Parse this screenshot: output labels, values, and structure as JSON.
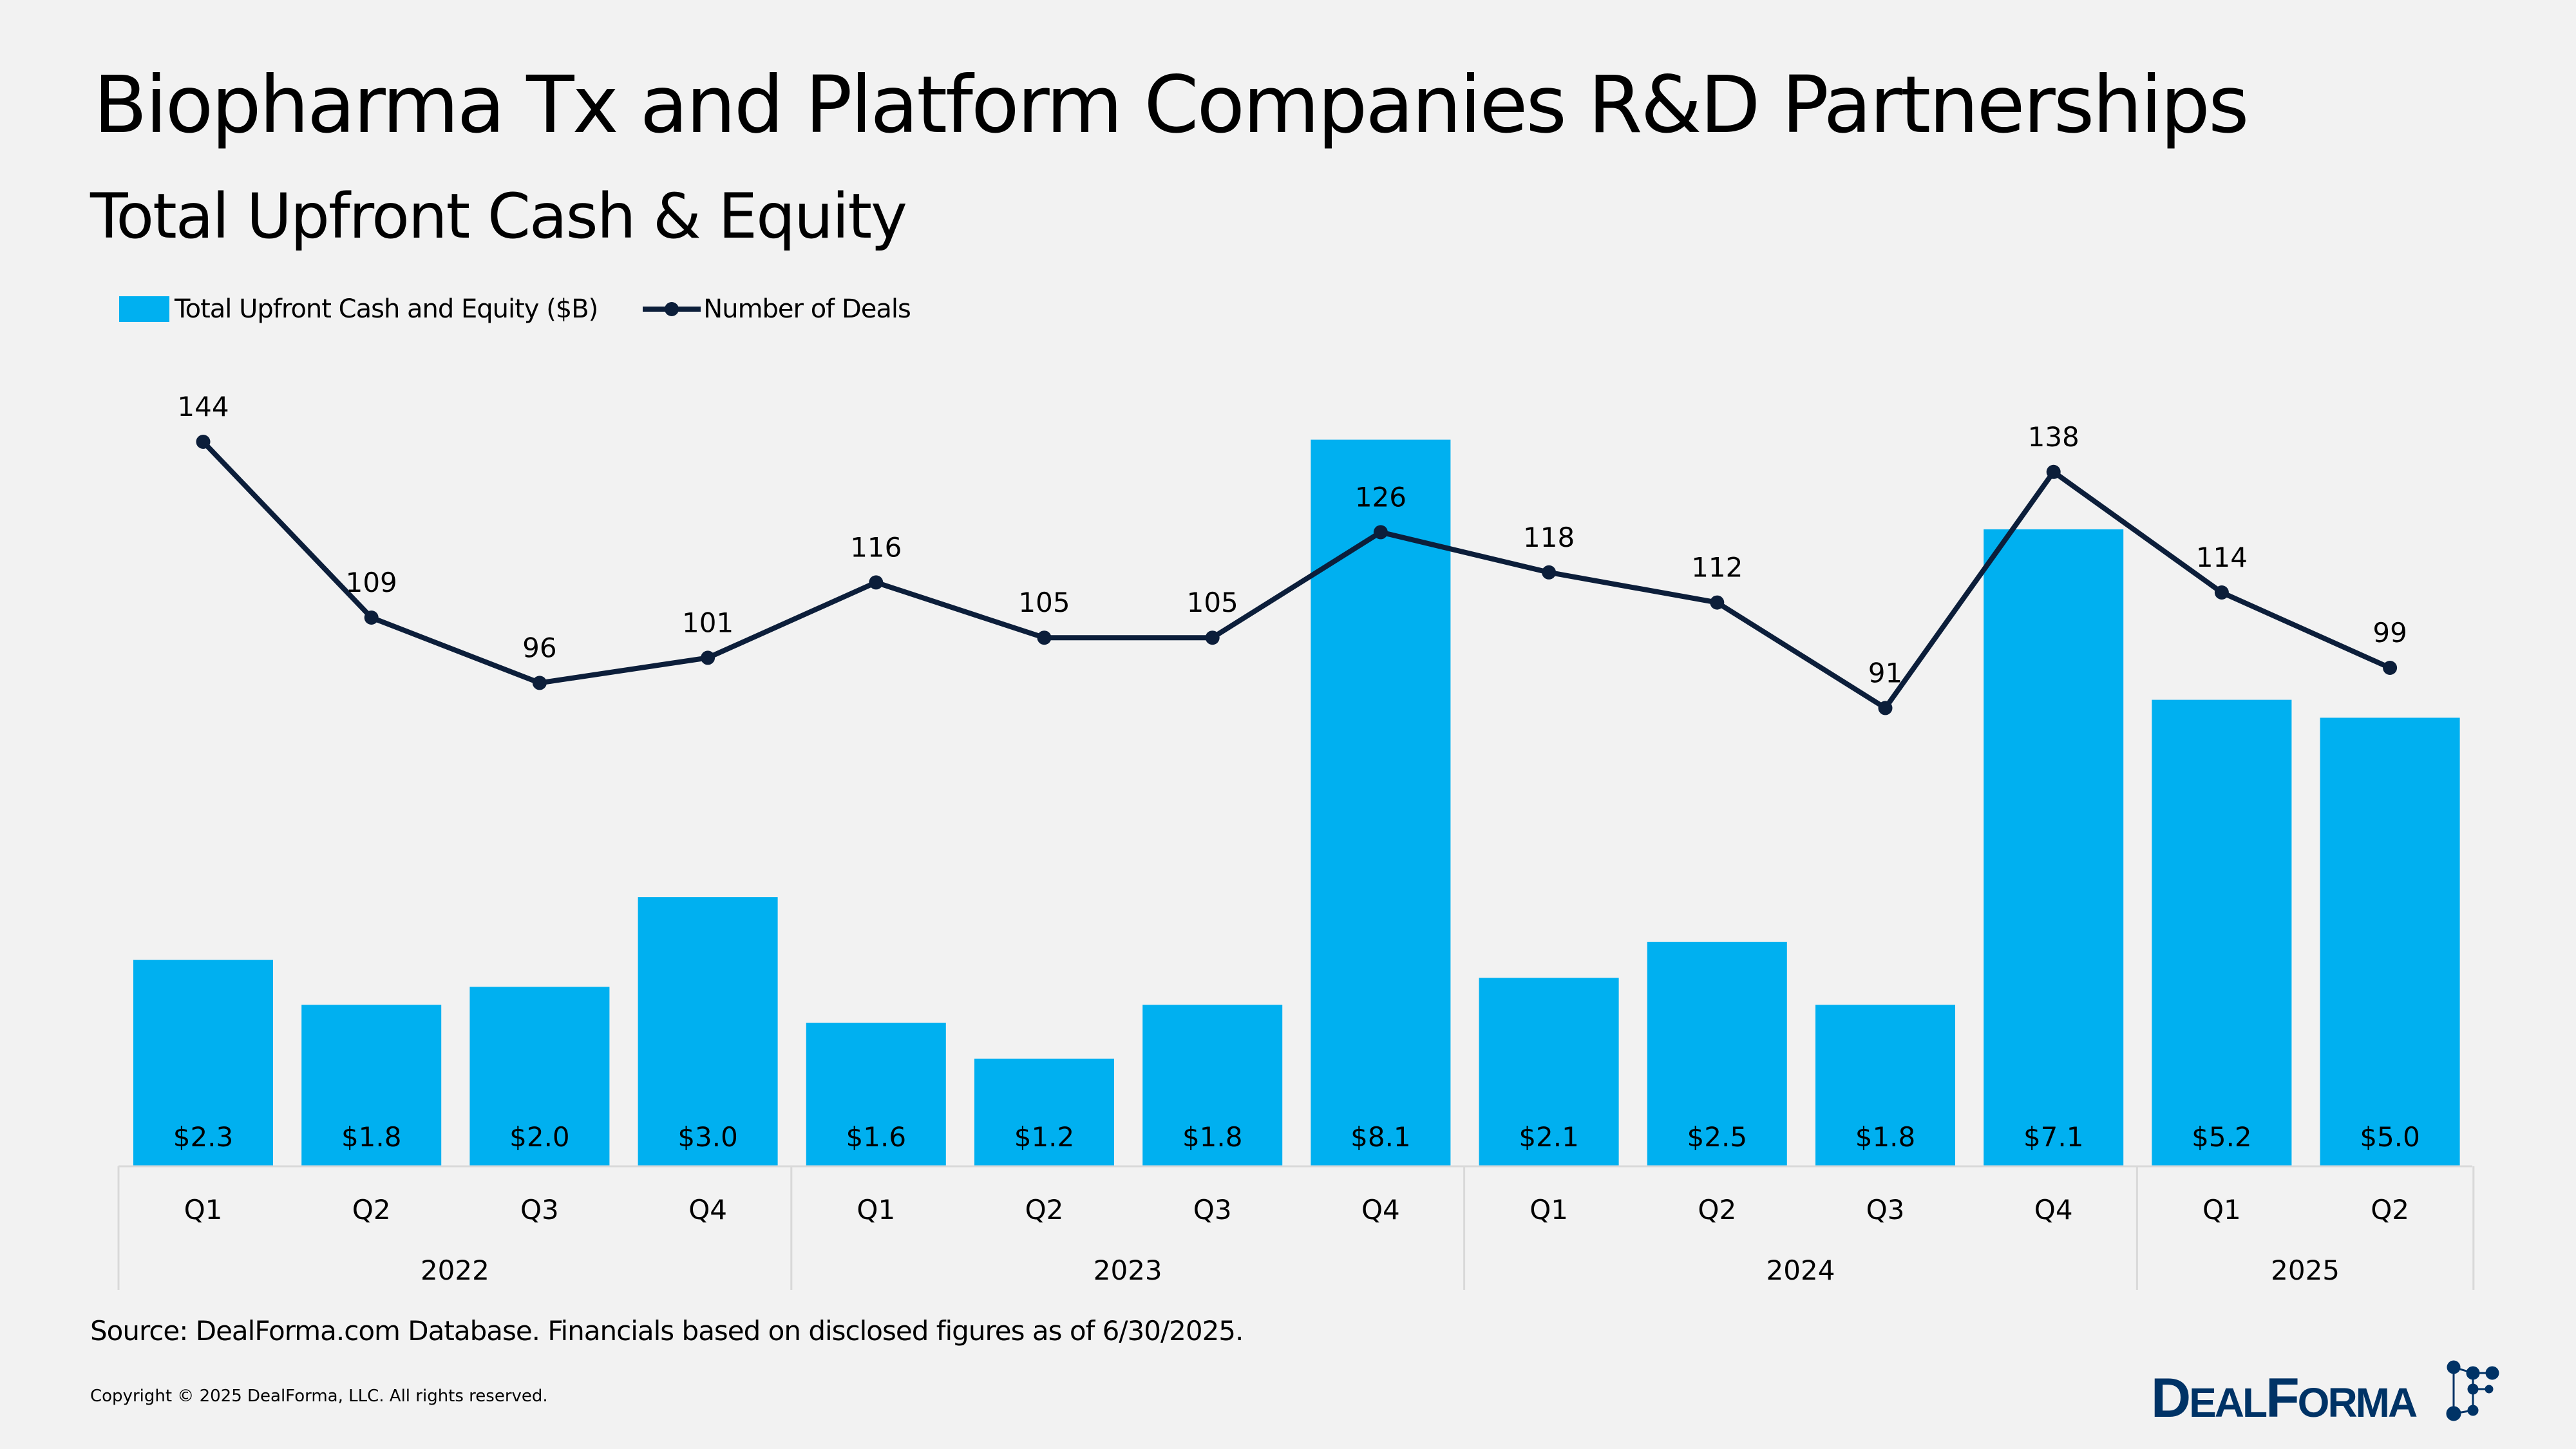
{
  "header": {
    "title": "Biopharma Tx and Platform Companies R&D Partnerships",
    "subtitle": "Total Upfront Cash & Equity"
  },
  "footer": {
    "source": "Source: DealForma.com Database. Financials based on disclosed figures as of 6/30/2025.",
    "copyright": "Copyright © 2025 DealForma, LLC. All rights reserved.",
    "logo_text": "DEALFORMA"
  },
  "colors": {
    "bar": "#00b0f0",
    "line": "#0c1e3a",
    "logo": "#003366"
  },
  "chart_data": {
    "type": "bar+line",
    "title": "Total Upfront Cash & Equity",
    "legend": [
      "Total Upfront Cash and Equity ($B)",
      "Number of Deals"
    ],
    "legend_position": "top-left",
    "categories": [
      "Q1",
      "Q2",
      "Q3",
      "Q4",
      "Q1",
      "Q2",
      "Q3",
      "Q4",
      "Q1",
      "Q2",
      "Q3",
      "Q4",
      "Q1",
      "Q2"
    ],
    "years": [
      {
        "label": "2022",
        "count": 4
      },
      {
        "label": "2023",
        "count": 4
      },
      {
        "label": "2024",
        "count": 4
      },
      {
        "label": "2025",
        "count": 2
      }
    ],
    "series": [
      {
        "name": "Total Upfront Cash and Equity ($B)",
        "type": "bar",
        "values": [
          2.3,
          1.8,
          2.0,
          3.0,
          1.6,
          1.2,
          1.8,
          8.1,
          2.1,
          2.5,
          1.8,
          7.1,
          5.2,
          5.0
        ],
        "labels": [
          "$2.3",
          "$1.8",
          "$2.0",
          "$3.0",
          "$1.6",
          "$1.2",
          "$1.8",
          "$8.1",
          "$2.1",
          "$2.5",
          "$1.8",
          "$7.1",
          "$5.2",
          "$5.0"
        ]
      },
      {
        "name": "Number of Deals",
        "type": "line",
        "values": [
          144,
          109,
          96,
          101,
          116,
          105,
          105,
          126,
          118,
          112,
          91,
          138,
          114,
          99
        ]
      }
    ],
    "grid": false
  }
}
